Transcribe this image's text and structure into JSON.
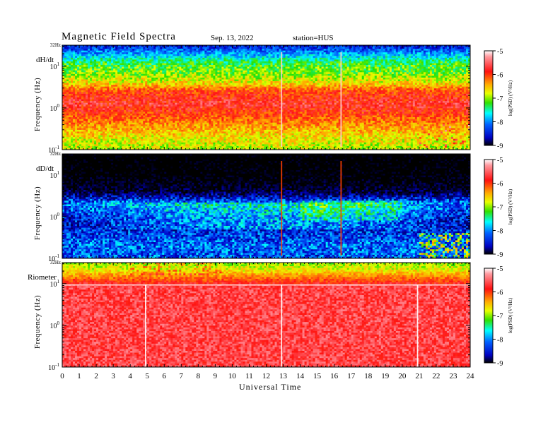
{
  "header": {
    "title": "Magnetic Field Spectra",
    "date": "Sep. 13, 2022",
    "station": "station=HUS"
  },
  "chart_data": [
    {
      "type": "heatmap",
      "panel_label": "dH/dt",
      "ylabel": "Frequency (Hz)",
      "top_label": "32Hz",
      "y_ticks": [
        {
          "value": 10,
          "base": "10",
          "exp": "1"
        },
        {
          "value": 1,
          "base": "10",
          "exp": "0"
        },
        {
          "value": 0.1,
          "base": "10",
          "exp": "-1"
        }
      ],
      "y_scale": "log",
      "ylim": [
        0.1,
        32
      ],
      "xlim": [
        0,
        24
      ],
      "colorbar": {
        "ticks": [
          "-5",
          "-6",
          "-7",
          "-8",
          "-9"
        ],
        "label": "log(PSD) (V²/Hz)",
        "range": [
          -9,
          -5
        ]
      },
      "background_level": -6.2,
      "spectral_profile": [
        {
          "freq": 32,
          "level": -8.6
        },
        {
          "freq": 20,
          "level": -8.0
        },
        {
          "freq": 12,
          "level": -7.3
        },
        {
          "freq": 7,
          "level": -7.1
        },
        {
          "freq": 4,
          "level": -6.7
        },
        {
          "freq": 2.5,
          "level": -6.0
        },
        {
          "freq": 1.2,
          "level": -5.7
        },
        {
          "freq": 0.5,
          "level": -6.2
        },
        {
          "freq": 0.2,
          "level": -6.7
        },
        {
          "freq": 0.1,
          "level": -6.9
        }
      ],
      "spikes_hours": [
        12.9,
        16.4
      ]
    },
    {
      "type": "heatmap",
      "panel_label": "dD/dt",
      "ylabel": "Frequency (Hz)",
      "top_label": "32Hz",
      "y_ticks": [
        {
          "value": 10,
          "base": "10",
          "exp": "1"
        },
        {
          "value": 1,
          "base": "10",
          "exp": "0"
        },
        {
          "value": 0.1,
          "base": "10",
          "exp": "-1"
        }
      ],
      "y_scale": "log",
      "ylim": [
        0.1,
        32
      ],
      "xlim": [
        0,
        24
      ],
      "colorbar": {
        "ticks": [
          "-5",
          "-6",
          "-7",
          "-8",
          "-9"
        ],
        "label": "log(PSD) (V²/Hz)",
        "range": [
          -9,
          -5
        ]
      },
      "background_level": -8.5,
      "spectral_profile": [
        {
          "freq": 32,
          "level": -9.9
        },
        {
          "freq": 10,
          "level": -9.8
        },
        {
          "freq": 4,
          "level": -9.3
        },
        {
          "freq": 2,
          "level": -8.0
        },
        {
          "freq": 1,
          "level": -8.4
        },
        {
          "freq": 0.5,
          "level": -8.5
        },
        {
          "freq": 0.2,
          "level": -8.2
        },
        {
          "freq": 0.1,
          "level": -8.3
        }
      ],
      "spikes_hours": [
        12.9,
        16.4
      ]
    },
    {
      "type": "heatmap",
      "panel_label": "Riometer",
      "ylabel": "Frequency (Hz)",
      "top_label": "32Hz",
      "y_ticks": [
        {
          "value": 10,
          "base": "10",
          "exp": "1"
        },
        {
          "value": 1,
          "base": "10",
          "exp": "0"
        },
        {
          "value": 0.1,
          "base": "10",
          "exp": "-1"
        }
      ],
      "y_scale": "log",
      "ylim": [
        0.1,
        32
      ],
      "xlim": [
        0,
        24
      ],
      "colorbar": {
        "ticks": [
          "-5",
          "-6",
          "-7",
          "-8",
          "-9"
        ],
        "label": "log(PSD) (V²/Hz)",
        "range": [
          -9,
          -5
        ]
      },
      "background_level": -5.6,
      "spectral_profile": [
        {
          "freq": 32,
          "level": -7.0
        },
        {
          "freq": 22,
          "level": -6.8
        },
        {
          "freq": 15,
          "level": -6.3
        },
        {
          "freq": 11,
          "level": -5.9
        },
        {
          "freq": 9,
          "level": -5.6
        },
        {
          "freq": 1,
          "level": -5.6
        },
        {
          "freq": 0.1,
          "level": -5.6
        }
      ],
      "spikes_hours": [
        4.9,
        12.9,
        20.9
      ]
    }
  ],
  "x_axis": {
    "label": "Universal Time",
    "ticks": [
      "0",
      "1",
      "2",
      "3",
      "4",
      "5",
      "6",
      "7",
      "8",
      "9",
      "10",
      "11",
      "12",
      "13",
      "14",
      "15",
      "16",
      "17",
      "18",
      "19",
      "20",
      "21",
      "22",
      "23",
      "24"
    ]
  }
}
